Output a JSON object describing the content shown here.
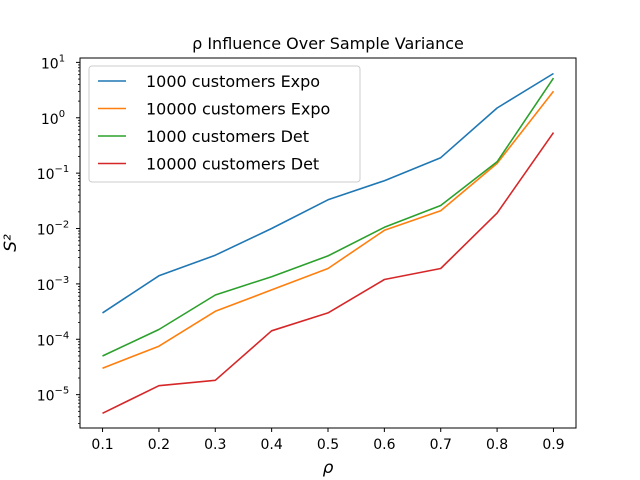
{
  "chart_data": {
    "type": "line",
    "title": "ρ Influence Over Sample Variance",
    "xlabel": "ρ",
    "ylabel": "S²",
    "x": [
      0.1,
      0.2,
      0.3,
      0.4,
      0.5,
      0.6,
      0.7,
      0.8,
      0.9
    ],
    "x_ticks": [
      "0.1",
      "0.2",
      "0.3",
      "0.4",
      "0.5",
      "0.6",
      "0.7",
      "0.8",
      "0.9"
    ],
    "y_scale": "log",
    "y_ticks": [
      {
        "base": "10",
        "exp": "1"
      },
      {
        "base": "10",
        "exp": "0"
      },
      {
        "base": "10",
        "exp": "−1"
      },
      {
        "base": "10",
        "exp": "−2"
      },
      {
        "base": "10",
        "exp": "−3"
      },
      {
        "base": "10",
        "exp": "−4"
      },
      {
        "base": "10",
        "exp": "−5"
      }
    ],
    "ylim": [
      2.5e-06,
      12
    ],
    "grid": false,
    "legend_position": "top-left",
    "series": [
      {
        "name": "1000 customers Expo",
        "color": "#1f77b4",
        "values": [
          0.0003,
          0.0014,
          0.0033,
          0.01,
          0.033,
          0.073,
          0.19,
          1.5,
          6.3
        ]
      },
      {
        "name": "10000 customers Expo",
        "color": "#ff7f0e",
        "values": [
          3e-05,
          7.5e-05,
          0.00032,
          0.00078,
          0.0019,
          0.0093,
          0.021,
          0.15,
          3.0
        ]
      },
      {
        "name": "1000 customers Det",
        "color": "#2ca02c",
        "values": [
          5e-05,
          0.00015,
          0.00063,
          0.00135,
          0.0032,
          0.0105,
          0.026,
          0.16,
          5.2
        ]
      },
      {
        "name": "10000 customers Det",
        "color": "#d62728",
        "values": [
          4.6e-06,
          1.45e-05,
          1.82e-05,
          0.000142,
          0.0003,
          0.0012,
          0.0019,
          0.019,
          0.54
        ]
      }
    ]
  }
}
